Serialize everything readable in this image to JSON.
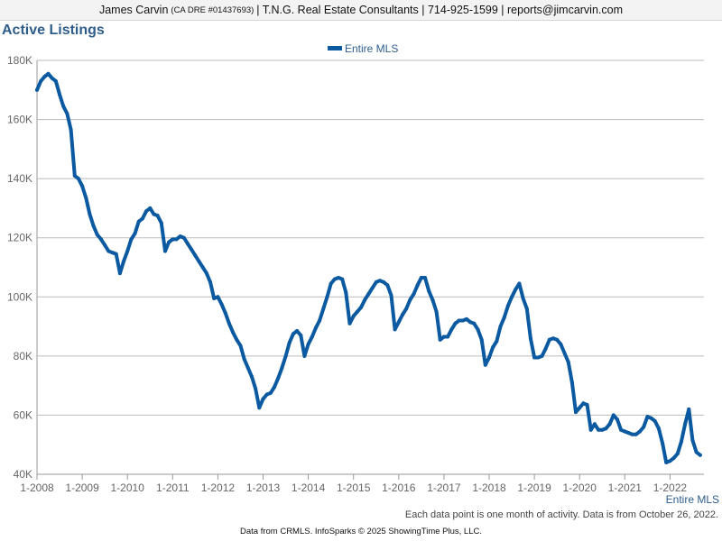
{
  "header": {
    "name": "James Carvin",
    "dre": "(CA DRE #01437693)",
    "rest": "| T.N.G. Real Estate Consultants | 714-925-1599 | reports@jimcarvin.com"
  },
  "series_label_bottom": "Entire MLS",
  "note": "Each data point is one month of activity. Data is from October 26, 2022.",
  "footer": "Data from CRMLS. InfoSparks © 2025 ShowingTime Plus, LLC.",
  "colors": {
    "line": "#0b5aa1",
    "title": "#2e5d8c",
    "grid": "#bbbbbb"
  },
  "chart_data": {
    "type": "line",
    "title": "Active Listings",
    "legend_position": "top-center",
    "grid": true,
    "ylim": [
      40000,
      180000
    ],
    "yticks": [
      40000,
      60000,
      80000,
      100000,
      120000,
      140000,
      160000,
      180000
    ],
    "ytick_labels": [
      "40K",
      "60K",
      "80K",
      "100K",
      "120K",
      "140K",
      "160K",
      "180K"
    ],
    "xticks": [
      "2008-01",
      "2009-01",
      "2010-01",
      "2011-01",
      "2012-01",
      "2013-01",
      "2014-01",
      "2015-01",
      "2016-01",
      "2017-01",
      "2018-01",
      "2019-01",
      "2020-01",
      "2021-01",
      "2022-01"
    ],
    "xtick_labels": [
      "1-2008",
      "1-2009",
      "1-2010",
      "1-2011",
      "1-2012",
      "1-2013",
      "1-2014",
      "1-2015",
      "1-2016",
      "1-2017",
      "1-2018",
      "1-2019",
      "1-2020",
      "1-2021",
      "1-2022"
    ],
    "series": [
      {
        "name": "Entire MLS",
        "start": "2008-01",
        "frequency": "monthly",
        "values": [
          170000,
          173000,
          174500,
          175500,
          174000,
          173000,
          168500,
          164500,
          162000,
          156500,
          141000,
          140000,
          137500,
          133500,
          128000,
          124000,
          121000,
          119500,
          117500,
          115500,
          115000,
          114500,
          108000,
          112000,
          115500,
          119500,
          121500,
          125500,
          126500,
          129000,
          130000,
          128000,
          127500,
          125000,
          115500,
          118500,
          119500,
          119500,
          120500,
          120000,
          118000,
          116000,
          114000,
          112000,
          110000,
          108000,
          105000,
          99500,
          100000,
          97500,
          94500,
          91000,
          88000,
          85500,
          83500,
          79000,
          76000,
          73000,
          69000,
          62500,
          65500,
          67000,
          67500,
          69500,
          72500,
          76000,
          80000,
          84500,
          87500,
          88500,
          87000,
          80000,
          84000,
          86500,
          89500,
          92000,
          96000,
          100000,
          104500,
          106000,
          106500,
          106000,
          101500,
          91000,
          93500,
          95000,
          96500,
          99000,
          101000,
          103000,
          105000,
          105500,
          105000,
          104000,
          100500,
          89000,
          91500,
          94000,
          96000,
          99000,
          101000,
          104000,
          106500,
          106500,
          102000,
          99000,
          95000,
          85500,
          86500,
          86500,
          89000,
          91000,
          92000,
          92000,
          92500,
          91500,
          91000,
          89000,
          85500,
          77000,
          79500,
          83000,
          85000,
          90000,
          93000,
          97000,
          100000,
          102500,
          104500,
          99500,
          96000,
          86000,
          79500,
          79500,
          80000,
          82500,
          85500,
          86000,
          85500,
          84000,
          81000,
          78000,
          71000,
          61000,
          62500,
          64000,
          63500,
          55000,
          57000,
          55000,
          55000,
          55500,
          57000,
          60000,
          58500,
          55000,
          54500,
          54000,
          53500,
          53500,
          54500,
          56000,
          59500,
          59000,
          58000,
          55500,
          50500,
          44000,
          44500,
          45500,
          47000,
          51000,
          57000,
          62000,
          51500,
          47500,
          46500
        ]
      }
    ]
  }
}
